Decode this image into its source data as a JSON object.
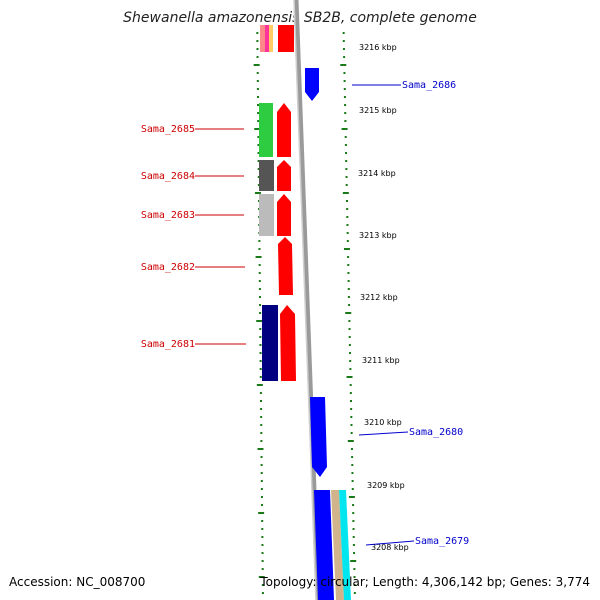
{
  "title": "Shewanella amazonensis SB2B, complete genome",
  "footer": {
    "accession": "Accession: NC_008700",
    "summary": "Topology: circular; Length: 4,306,142 bp; Genes: 3,774"
  },
  "colors": {
    "forward_label": "#cc0000",
    "reverse_label": "#0000cc",
    "tick": "#1a7a1a",
    "backbone": "#888888"
  },
  "kbp_labels": [
    "3216 kbp",
    "3215 kbp",
    "3214 kbp",
    "3213 kbp",
    "3212 kbp",
    "3211 kbp",
    "3210 kbp",
    "3209 kbp",
    "3208 kbp"
  ],
  "left_genes": [
    {
      "label": "Sama_2685",
      "color": "#2ecc40"
    },
    {
      "label": "Sama_2684",
      "color": "#555555"
    },
    {
      "label": "Sama_2683",
      "color": "#bbbbbb"
    },
    {
      "label": "Sama_2682",
      "color": ""
    },
    {
      "label": "Sama_2681",
      "color": "#000080"
    }
  ],
  "right_genes": [
    {
      "label": "Sama_2686"
    },
    {
      "label": "Sama_2680"
    },
    {
      "label": "Sama_2679"
    }
  ]
}
